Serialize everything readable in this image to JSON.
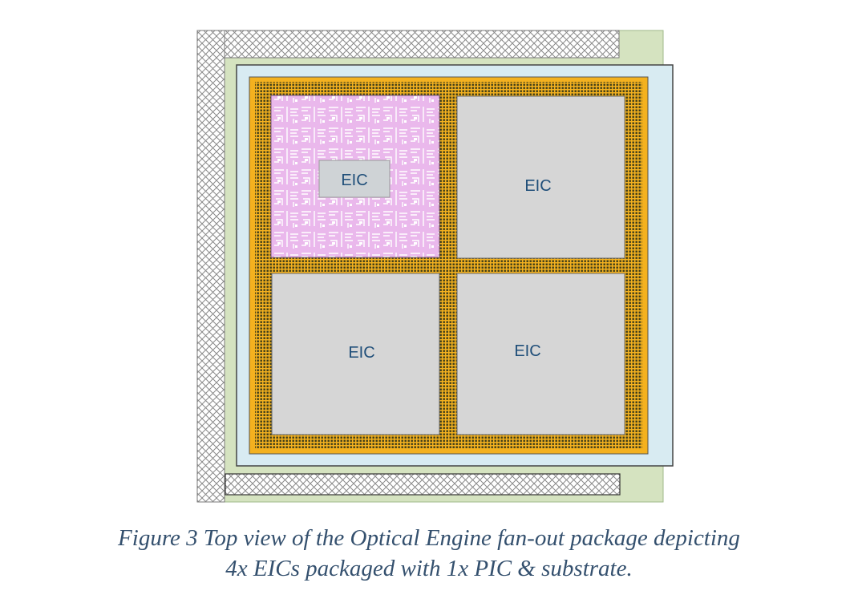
{
  "diagram": {
    "chips": [
      {
        "label": "EIC",
        "style": "layout"
      },
      {
        "label": "EIC",
        "style": "plain"
      },
      {
        "label": "EIC",
        "style": "plain"
      },
      {
        "label": "EIC",
        "style": "plain"
      }
    ],
    "colors": {
      "substrate": "#d5e3c0",
      "pic": "#d8ebf2",
      "frame": "#f4b11f",
      "chip": "#d6d6d6",
      "layout": "#e8b4ea",
      "label": "#1f4e79"
    }
  },
  "caption": {
    "line1": "Figure 3 Top view of the Optical Engine fan-out package depicting",
    "line2": "4x EICs packaged with 1x PIC & substrate."
  }
}
